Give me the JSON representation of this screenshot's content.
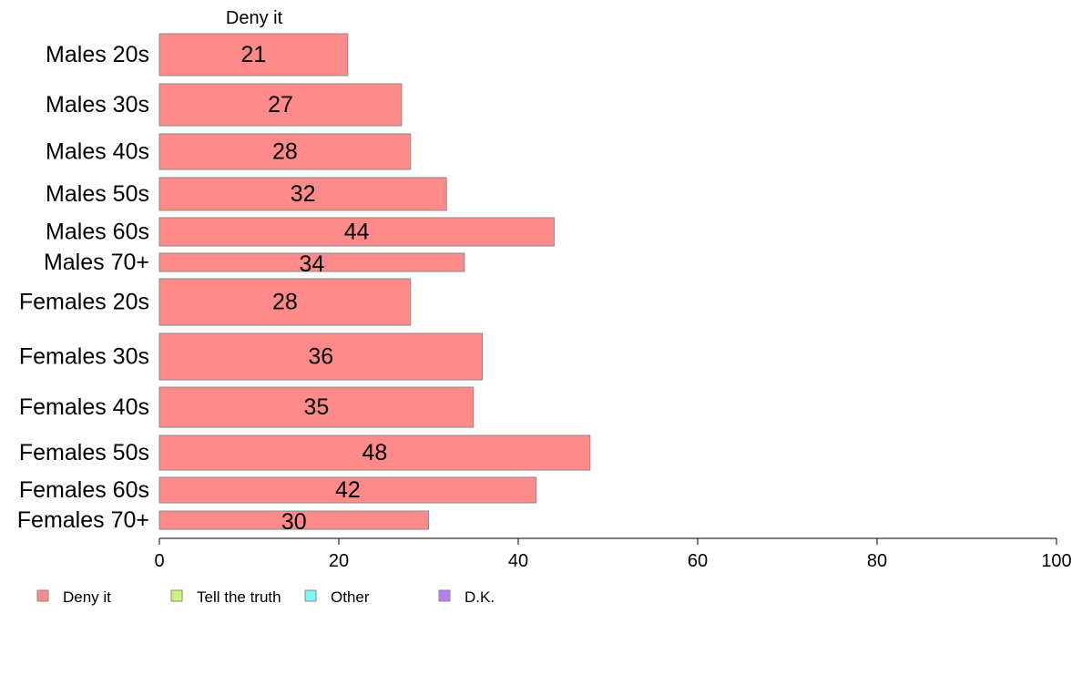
{
  "chart_data": {
    "type": "bar",
    "orientation": "horizontal",
    "stacked": true,
    "column_title": "Deny it",
    "categories": [
      "Males 20s",
      "Males 30s",
      "Males 40s",
      "Males 50s",
      "Males 60s",
      "Males 70+",
      "Females 20s",
      "Females 30s",
      "Females 40s",
      "Females 50s",
      "Females 60s",
      "Females 70+"
    ],
    "series": [
      {
        "name": "Deny it",
        "color": "#ff8a8a",
        "values": [
          21,
          27,
          28,
          32,
          44,
          34,
          28,
          36,
          35,
          48,
          42,
          30
        ]
      }
    ],
    "legend": [
      {
        "label": "Deny it",
        "color": "#ff8a8a"
      },
      {
        "label": "Tell the truth",
        "color": "#c8f57a"
      },
      {
        "label": "Other",
        "color": "#7ff5f5"
      },
      {
        "label": "D.K.",
        "color": "#b57ef0"
      }
    ],
    "legend_position": "bottom-left",
    "xlim": [
      0,
      100
    ],
    "xticks": [
      0,
      20,
      40,
      60,
      80,
      100
    ],
    "grid": false
  }
}
